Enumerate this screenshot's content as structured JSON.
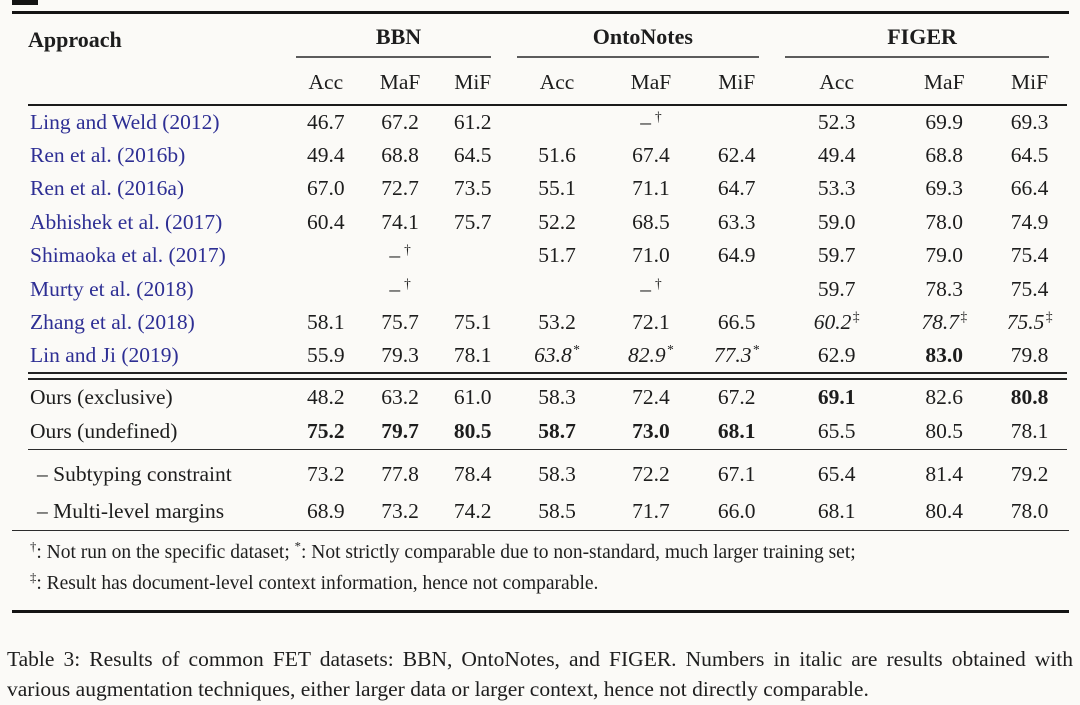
{
  "page": {
    "background": "#fbfaf7",
    "link_color": "#2e2f94"
  },
  "table": {
    "approach_header": "Approach",
    "groups": [
      {
        "name": "BBN",
        "cols": [
          "Acc",
          "MaF",
          "MiF"
        ]
      },
      {
        "name": "OntoNotes",
        "cols": [
          "Acc",
          "MaF",
          "MiF"
        ]
      },
      {
        "name": "FIGER",
        "cols": [
          "Acc",
          "MaF",
          "MiF"
        ]
      }
    ],
    "rows": [
      {
        "type": "data",
        "section": "pub",
        "label": "Ling and Weld (2012)",
        "link": true,
        "cells": [
          {
            "v": "46.7"
          },
          {
            "v": "67.2"
          },
          {
            "v": "61.2"
          },
          null,
          {
            "v": "–",
            "sup": "†",
            "dash": true
          },
          null,
          {
            "v": "52.3"
          },
          {
            "v": "69.9"
          },
          {
            "v": "69.3"
          }
        ]
      },
      {
        "type": "data",
        "section": "pub",
        "label": "Ren et al. (2016b)",
        "link": true,
        "cells": [
          {
            "v": "49.4"
          },
          {
            "v": "68.8"
          },
          {
            "v": "64.5"
          },
          {
            "v": "51.6"
          },
          {
            "v": "67.4"
          },
          {
            "v": "62.4"
          },
          {
            "v": "49.4"
          },
          {
            "v": "68.8"
          },
          {
            "v": "64.5"
          }
        ]
      },
      {
        "type": "data",
        "section": "pub",
        "label": "Ren et al. (2016a)",
        "link": true,
        "cells": [
          {
            "v": "67.0"
          },
          {
            "v": "72.7"
          },
          {
            "v": "73.5"
          },
          {
            "v": "55.1"
          },
          {
            "v": "71.1"
          },
          {
            "v": "64.7"
          },
          {
            "v": "53.3"
          },
          {
            "v": "69.3"
          },
          {
            "v": "66.4"
          }
        ]
      },
      {
        "type": "data",
        "section": "pub",
        "label": "Abhishek et al. (2017)",
        "link": true,
        "cells": [
          {
            "v": "60.4"
          },
          {
            "v": "74.1"
          },
          {
            "v": "75.7"
          },
          {
            "v": "52.2"
          },
          {
            "v": "68.5"
          },
          {
            "v": "63.3"
          },
          {
            "v": "59.0"
          },
          {
            "v": "78.0"
          },
          {
            "v": "74.9"
          }
        ]
      },
      {
        "type": "data",
        "section": "pub",
        "label": "Shimaoka et al. (2017)",
        "link": true,
        "cells": [
          null,
          {
            "v": "–",
            "sup": "†",
            "dash": true
          },
          null,
          {
            "v": "51.7"
          },
          {
            "v": "71.0"
          },
          {
            "v": "64.9"
          },
          {
            "v": "59.7"
          },
          {
            "v": "79.0"
          },
          {
            "v": "75.4"
          }
        ]
      },
      {
        "type": "data",
        "section": "pub",
        "label": "Murty et al. (2018)",
        "link": true,
        "cells": [
          null,
          {
            "v": "–",
            "sup": "†",
            "dash": true
          },
          null,
          null,
          {
            "v": "–",
            "sup": "†",
            "dash": true
          },
          null,
          {
            "v": "59.7"
          },
          {
            "v": "78.3"
          },
          {
            "v": "75.4"
          }
        ]
      },
      {
        "type": "data",
        "section": "pub",
        "label": "Zhang et al. (2018)",
        "link": true,
        "cells": [
          {
            "v": "58.1"
          },
          {
            "v": "75.7"
          },
          {
            "v": "75.1"
          },
          {
            "v": "53.2"
          },
          {
            "v": "72.1"
          },
          {
            "v": "66.5"
          },
          {
            "v": "60.2",
            "i": true,
            "sup": "‡"
          },
          {
            "v": "78.7",
            "i": true,
            "sup": "‡"
          },
          {
            "v": "75.5",
            "i": true,
            "sup": "‡"
          }
        ]
      },
      {
        "type": "data",
        "section": "pub",
        "label": "Lin and Ji (2019)",
        "link": true,
        "cells": [
          {
            "v": "55.9"
          },
          {
            "v": "79.3"
          },
          {
            "v": "78.1"
          },
          {
            "v": "63.8",
            "i": true,
            "sup": "*"
          },
          {
            "v": "82.9",
            "i": true,
            "sup": "*"
          },
          {
            "v": "77.3",
            "i": true,
            "sup": "*"
          },
          {
            "v": "62.9"
          },
          {
            "v": "83.0",
            "b": true
          },
          {
            "v": "79.8"
          }
        ]
      },
      {
        "type": "rule",
        "style": "double"
      },
      {
        "type": "data",
        "section": "ours",
        "label": "Ours (exclusive)",
        "link": false,
        "cells": [
          {
            "v": "48.2"
          },
          {
            "v": "63.2"
          },
          {
            "v": "61.0"
          },
          {
            "v": "58.3"
          },
          {
            "v": "72.4"
          },
          {
            "v": "67.2"
          },
          {
            "v": "69.1",
            "b": true
          },
          {
            "v": "82.6"
          },
          {
            "v": "80.8",
            "b": true
          }
        ]
      },
      {
        "type": "data",
        "section": "ours",
        "label": "Ours (undefined)",
        "link": false,
        "cells": [
          {
            "v": "75.2",
            "b": true
          },
          {
            "v": "79.7",
            "b": true
          },
          {
            "v": "80.5",
            "b": true
          },
          {
            "v": "58.7",
            "b": true
          },
          {
            "v": "73.0",
            "b": true
          },
          {
            "v": "68.1",
            "b": true
          },
          {
            "v": "65.5"
          },
          {
            "v": "80.5"
          },
          {
            "v": "78.1"
          }
        ]
      },
      {
        "type": "rule",
        "style": "single"
      },
      {
        "type": "data",
        "section": "abl",
        "label": "– Subtyping constraint",
        "link": false,
        "indent": true,
        "cells": [
          {
            "v": "73.2"
          },
          {
            "v": "77.8"
          },
          {
            "v": "78.4"
          },
          {
            "v": "58.3"
          },
          {
            "v": "72.2"
          },
          {
            "v": "67.1"
          },
          {
            "v": "65.4"
          },
          {
            "v": "81.4"
          },
          {
            "v": "79.2"
          }
        ]
      },
      {
        "type": "data",
        "section": "abl",
        "label": "– Multi-level margins",
        "link": false,
        "indent": true,
        "cells": [
          {
            "v": "68.9"
          },
          {
            "v": "73.2"
          },
          {
            "v": "74.2"
          },
          {
            "v": "58.5"
          },
          {
            "v": "71.7"
          },
          {
            "v": "66.0"
          },
          {
            "v": "68.1"
          },
          {
            "v": "80.4"
          },
          {
            "v": "78.0"
          }
        ]
      }
    ],
    "footnotes": [
      [
        {
          "sup": "†"
        },
        {
          "text": ": Not run on the specific dataset; "
        },
        {
          "sup": "*"
        },
        {
          "text": ": Not strictly comparable due to non-standard, much larger training set;"
        }
      ],
      [
        {
          "sup": "‡"
        },
        {
          "text": ": Result has document-level context information, hence not comparable."
        }
      ]
    ]
  },
  "caption": "Table 3: Results of common FET datasets: BBN, OntoNotes, and FIGER. Numbers in italic are results obtained with various augmentation techniques, either larger data or larger context, hence not directly comparable."
}
